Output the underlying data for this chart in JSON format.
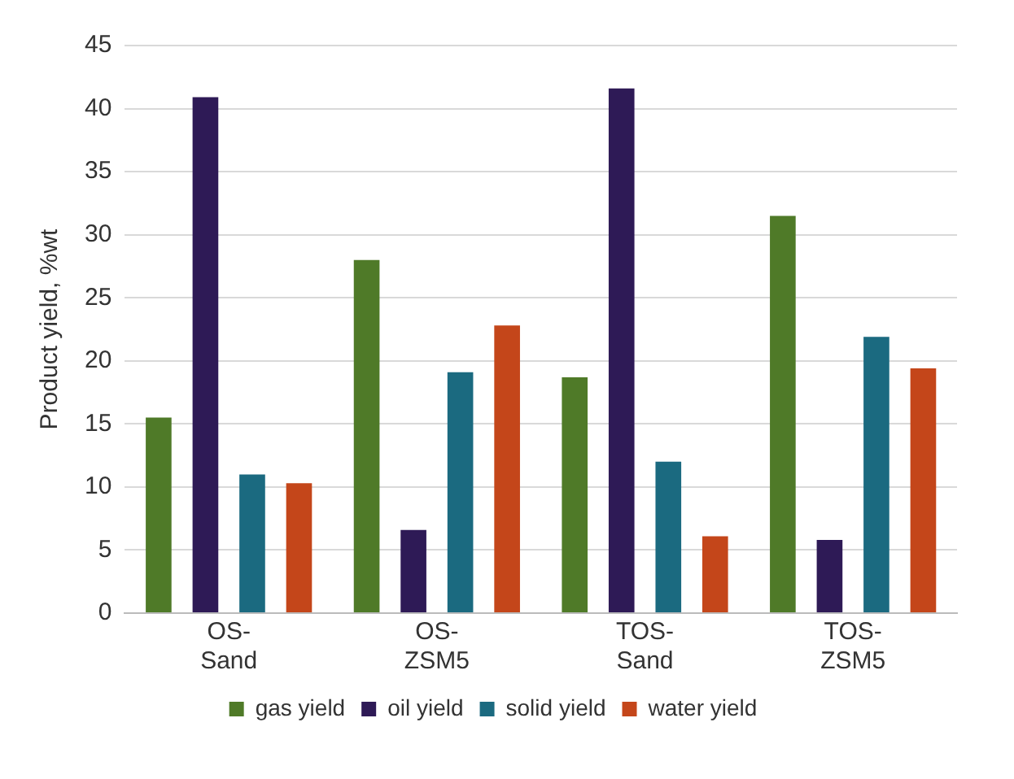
{
  "chart_data": {
    "type": "bar",
    "ylabel": "Product yield, %wt",
    "categories": [
      "OS-Sand",
      "OS-ZSM5",
      "TOS-Sand",
      "TOS-ZSM5"
    ],
    "series": [
      {
        "name": "gas yield",
        "color": "#4f7a28",
        "values": [
          15.5,
          28.0,
          18.7,
          31.5
        ]
      },
      {
        "name": "oil yield",
        "color": "#2e1a56",
        "values": [
          40.9,
          6.6,
          41.6,
          5.8
        ]
      },
      {
        "name": "solid yield",
        "color": "#1b6a80",
        "values": [
          11.0,
          19.1,
          12.0,
          21.9
        ]
      },
      {
        "name": "water yield",
        "color": "#c4461a",
        "values": [
          10.3,
          22.8,
          6.1,
          19.4
        ]
      }
    ],
    "ylim": [
      0,
      45
    ],
    "yticks": [
      0,
      5,
      10,
      15,
      20,
      25,
      30,
      35,
      40,
      45
    ],
    "grid": "y",
    "legend": "bottom"
  }
}
